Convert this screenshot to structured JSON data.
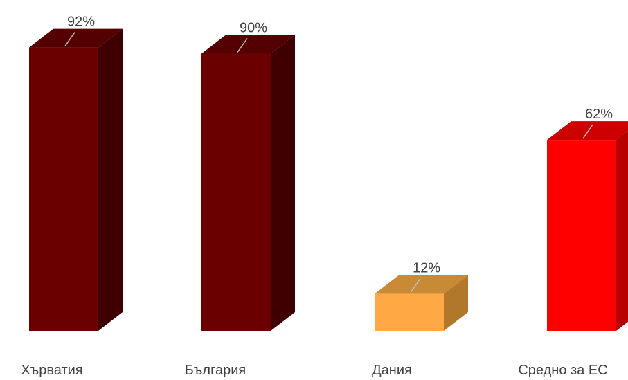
{
  "chart_data": {
    "type": "bar",
    "categories": [
      "Хърватия",
      "България",
      "Дания",
      "Средно за ЕС"
    ],
    "values": [
      92,
      90,
      12,
      62
    ],
    "value_labels": [
      "92%",
      "90%",
      "12%",
      "62%"
    ],
    "unit": "%",
    "title": "",
    "xlabel": "",
    "ylabel": "",
    "ylim": [
      0,
      100
    ],
    "grid": false,
    "legend": "none",
    "style": "3d-column",
    "colors": {
      "front": [
        "#6b0000",
        "#6b0000",
        "#ffa844",
        "#ff0000"
      ],
      "top": [
        "#540000",
        "#540000",
        "#c98a36",
        "#cc0000"
      ],
      "side": [
        "#3e0000",
        "#3e0000",
        "#b07828",
        "#b80000"
      ],
      "leader_line": "#bfbfbf",
      "text": "#404040"
    }
  }
}
